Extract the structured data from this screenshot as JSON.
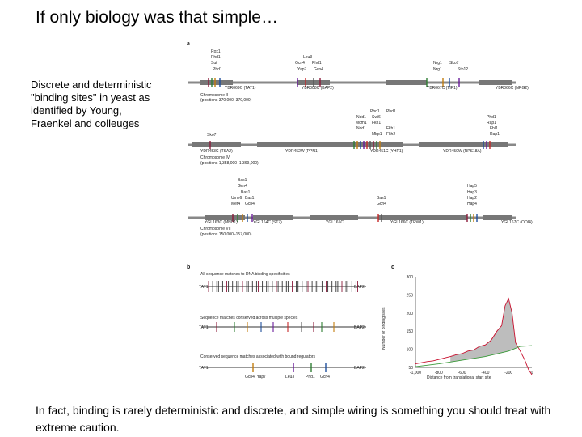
{
  "slide": {
    "title": "If only biology was that simple…",
    "description": "Discrete and deterministic \"binding sites\" in yeast as identified by Young, Fraenkel and colleuges",
    "footer": "In fact, binding is rarely deterministic and discrete, and simple wiring is something you should treat with extreme caution."
  },
  "figure": {
    "panel_a": {
      "label": "a",
      "chr2": {
        "name": "Chromosome II",
        "positions": "(positions 370,000–379,000)",
        "genes": [
          "YBR069C (TAT1)",
          "YBR008C (BAP2)",
          "YBR067C (TIP1)",
          "YBR066C (NRG2)"
        ],
        "factors": [
          "Rox1",
          "Phd1",
          "Sut",
          "Phd1",
          "Leu3",
          "Gcn4",
          "Phd1",
          "Yap7",
          "Gcn4",
          "Nrg1",
          "Sko7",
          "Nrg1",
          "Stb12"
        ]
      },
      "chr4": {
        "name": "Chromosome IV",
        "positions": "(positions 1,358,000–1,369,000)",
        "genes": [
          "YDR453C (TSA2)",
          "YDR452W (PPN1)",
          "YDR451C (YHP1)",
          "YDR450W (RPS18A)"
        ],
        "factors": [
          "Sko7",
          "Phd1",
          "Phd1",
          "Ndd1",
          "Swi6",
          "Mcm1",
          "Fkh1",
          "Ndd1",
          "Fkh1",
          "Mbp1",
          "Fkh2",
          "Phd1",
          "Rap1",
          "Fhl1",
          "Rap1"
        ]
      },
      "chr7": {
        "name": "Chromosome VII",
        "positions": "(positions 150,000–157,000)",
        "genes": [
          "YGL163C (MND1)",
          "YGL164C (ST7)",
          "YGL165C",
          "YGL166C (TRW1)",
          "YGL167C (OOI4)"
        ],
        "factors": [
          "Bas1",
          "Gcn4",
          "Bas1",
          "Ume6",
          "Bas1",
          "Met4",
          "Gcn4",
          "Bas1",
          "Gcn4",
          "Hap5",
          "Hap3",
          "Hap2",
          "Hap4"
        ]
      }
    },
    "panel_b": {
      "label": "b",
      "rows": [
        {
          "title": "All sequence matches to DNA binding specificities",
          "left": "TAT1",
          "right": "BAP2"
        },
        {
          "title": "Sequence matches conserved across multiple species",
          "left": "TAT1",
          "right": "BAP2"
        },
        {
          "title": "Conserved sequence matches associated with bound regulators",
          "left": "TAT1",
          "right": "BAP2"
        }
      ],
      "bottom_labels": [
        "Gcn4, Yap7",
        "Leu3",
        "Phd1",
        "Gcn4"
      ]
    },
    "panel_c": {
      "label": "c",
      "chart_data": {
        "type": "line",
        "xlabel": "Distance from translational start site",
        "ylabel": "Number of binding sites",
        "xlim": [
          -1000,
          0
        ],
        "ylim": [
          50,
          300
        ],
        "xticks": [
          "-1,000",
          "-800",
          "-600",
          "-400",
          "-200",
          "0"
        ],
        "yticks": [
          "300",
          "250",
          "200",
          "150",
          "100",
          "50"
        ],
        "series": [
          {
            "color": "#c8102e",
            "x": [
              -1000,
              -950,
              -900,
              -850,
              -800,
              -750,
              -700,
              -650,
              -600,
              -550,
              -500,
              -450,
              -400,
              -350,
              -300,
              -260,
              -230,
              -200,
              -170,
              -140,
              -100,
              -60,
              -30,
              0
            ],
            "y": [
              60,
              63,
              66,
              68,
              72,
              76,
              80,
              85,
              88,
              95,
              98,
              108,
              112,
              125,
              150,
              165,
              220,
              240,
              200,
              118,
              95,
              70,
              45,
              30
            ]
          },
          {
            "color": "#3a9a3a",
            "x": [
              -1000,
              -800,
              -600,
              -400,
              -200,
              -100,
              0
            ],
            "y": [
              52,
              60,
              70,
              80,
              95,
              108,
              110
            ]
          }
        ]
      }
    }
  }
}
